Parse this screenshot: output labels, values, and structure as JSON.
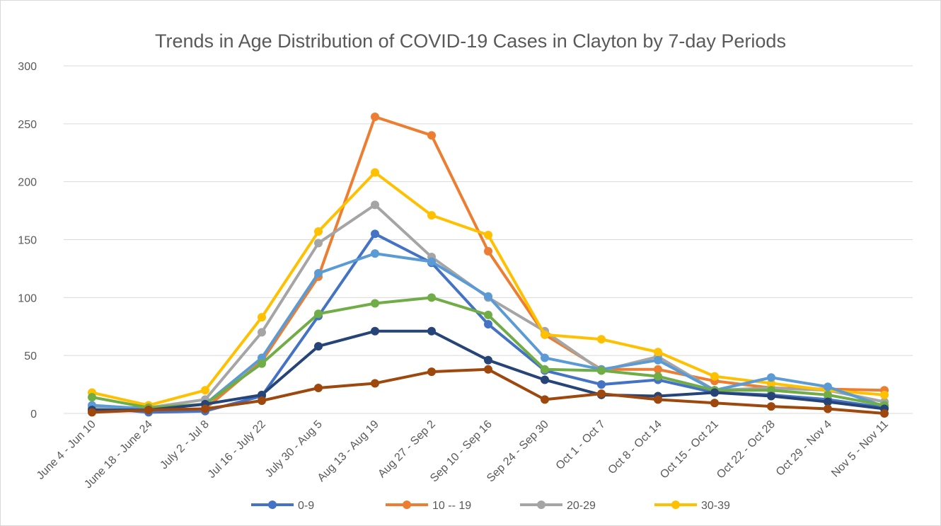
{
  "chart_data": {
    "type": "line",
    "title": "Trends in Age Distribution of COVID-19 Cases in Clayton by 7-day Periods",
    "categories": [
      "June 4 - Jun 10",
      "June 18 - June 24",
      "July 2 - Jul 8",
      "Jul 16 - July 22",
      "July 30 - Aug 5",
      "Aug 13 - Aug 19",
      "Aug 27 - Sep 2",
      "Sep 10 - Sep 16",
      "Sep 24 - Sep 30",
      "Oct 1 - Oct 7",
      "Oct 8 - Oct 14",
      "Oct 15 - Oct 21",
      "Oct 22 - Oct 28",
      "Oct 29 - Nov 4",
      "Nov 5 - Nov 11"
    ],
    "series": [
      {
        "name": "0-9",
        "color": "#4472c4",
        "values": [
          5,
          1,
          2,
          15,
          84,
          155,
          130,
          77,
          37,
          25,
          29,
          18,
          16,
          12,
          5
        ]
      },
      {
        "name": "10 -- 19",
        "color": "#ed7d31",
        "values": [
          3,
          3,
          4,
          45,
          118,
          256,
          240,
          140,
          68,
          38,
          38,
          28,
          22,
          21,
          20
        ]
      },
      {
        "name": "20-29",
        "color": "#a5a5a5",
        "values": [
          5,
          5,
          12,
          70,
          147,
          180,
          135,
          100,
          71,
          37,
          49,
          20,
          22,
          20,
          10
        ]
      },
      {
        "name": "30-39",
        "color": "#ffc000",
        "values": [
          18,
          7,
          20,
          83,
          157,
          208,
          171,
          154,
          68,
          64,
          53,
          32,
          26,
          20,
          16
        ]
      },
      {
        "color": "#5b9bd5",
        "values": [
          7,
          4,
          8,
          48,
          121,
          138,
          131,
          101,
          48,
          38,
          46,
          20,
          31,
          23,
          6
        ]
      },
      {
        "color": "#70ad47",
        "values": [
          14,
          5,
          8,
          43,
          86,
          95,
          100,
          85,
          38,
          37,
          32,
          20,
          20,
          16,
          7
        ]
      },
      {
        "color": "#264478",
        "values": [
          3,
          3,
          8,
          16,
          58,
          71,
          71,
          46,
          29,
          16,
          15,
          18,
          15,
          10,
          4
        ]
      },
      {
        "color": "#9e480e",
        "values": [
          1,
          3,
          4,
          11,
          22,
          26,
          36,
          38,
          12,
          17,
          12,
          9,
          6,
          4,
          0
        ]
      }
    ],
    "ylim": [
      0,
      300
    ],
    "yticks": [
      0,
      50,
      100,
      150,
      200,
      250,
      300
    ],
    "grid": true,
    "legend": "bottom"
  }
}
